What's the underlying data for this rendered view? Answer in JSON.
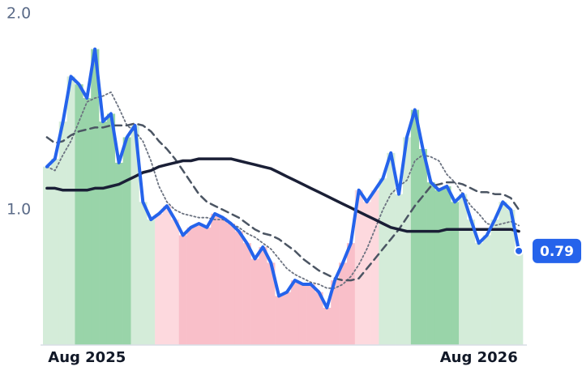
{
  "chart_data": {
    "type": "line",
    "categories": [
      null,
      null,
      null,
      null,
      null,
      "Aug 2025",
      null,
      null,
      null,
      null,
      null,
      null,
      null,
      null,
      null,
      null,
      null,
      null,
      null,
      null,
      null,
      null,
      null,
      null,
      null,
      null,
      null,
      null,
      null,
      null,
      null,
      null,
      null,
      null,
      null,
      null,
      null,
      null,
      null,
      null,
      null,
      null,
      null,
      null,
      null,
      null,
      null,
      null,
      null,
      null,
      null,
      null,
      null,
      null,
      "Aug 2026",
      null,
      null,
      null,
      null,
      null
    ],
    "series": [
      {
        "color": "#2563eb",
        "style": "solid",
        "width": 4,
        "values": [
          1.22,
          1.26,
          1.45,
          1.68,
          1.64,
          1.57,
          1.82,
          1.45,
          1.49,
          1.24,
          1.37,
          1.43,
          1.04,
          0.95,
          0.98,
          1.02,
          0.95,
          0.87,
          0.91,
          0.93,
          0.91,
          0.98,
          0.96,
          0.93,
          0.89,
          0.83,
          0.75,
          0.81,
          0.73,
          0.56,
          0.58,
          0.64,
          0.62,
          0.62,
          0.58,
          0.5,
          0.64,
          0.73,
          0.83,
          1.1,
          1.04,
          1.1,
          1.16,
          1.29,
          1.08,
          1.37,
          1.51,
          1.31,
          1.14,
          1.1,
          1.12,
          1.04,
          1.08,
          0.95,
          0.83,
          0.87,
          0.95,
          1.04,
          1.0,
          0.79
        ],
        "fill_colors": [
          "#d4ecd9",
          "#d4ecd9",
          "#d4ecd9",
          "#d4ecd9",
          "#99d4a9",
          "#99d4a9",
          "#99d4a9",
          "#99d4a9",
          "#99d4a9",
          "#99d4a9",
          "#99d4a9",
          "#d4ecd9",
          "#d4ecd9",
          "#d4ecd9",
          "#fdd9de",
          "#fdd9de",
          "#fdd9de",
          "#f9bfc9",
          "#f9bfc9",
          "#f9bfc9",
          "#f9bfc9",
          "#f9bfc9",
          "#f9bfc9",
          "#f9bfc9",
          "#f9bfc9",
          "#f9bfc9",
          "#f9bfc9",
          "#f9bfc9",
          "#f9bfc9",
          "#f9bfc9",
          "#f9bfc9",
          "#f9bfc9",
          "#f9bfc9",
          "#f9bfc9",
          "#f9bfc9",
          "#f9bfc9",
          "#f9bfc9",
          "#f9bfc9",
          "#f9bfc9",
          "#fdd9de",
          "#fdd9de",
          "#fdd9de",
          "#d4ecd9",
          "#d4ecd9",
          "#d4ecd9",
          "#d4ecd9",
          "#99d4a9",
          "#99d4a9",
          "#99d4a9",
          "#99d4a9",
          "#99d4a9",
          "#99d4a9",
          "#d4ecd9",
          "#d4ecd9",
          "#d4ecd9",
          "#d4ecd9",
          "#d4ecd9",
          "#d4ecd9",
          "#d4ecd9",
          "#d4ecd9"
        ],
        "end_label": true
      },
      {
        "color": "#1a1f36",
        "style": "solid",
        "width": 3.5,
        "values": [
          1.11,
          1.11,
          1.1,
          1.1,
          1.1,
          1.1,
          1.11,
          1.11,
          1.12,
          1.13,
          1.15,
          1.17,
          1.19,
          1.2,
          1.22,
          1.23,
          1.24,
          1.25,
          1.25,
          1.26,
          1.26,
          1.26,
          1.26,
          1.26,
          1.25,
          1.24,
          1.23,
          1.22,
          1.21,
          1.19,
          1.17,
          1.15,
          1.13,
          1.11,
          1.09,
          1.07,
          1.05,
          1.03,
          1.01,
          0.99,
          0.97,
          0.95,
          0.93,
          0.91,
          0.9,
          0.89,
          0.89,
          0.89,
          0.89,
          0.89,
          0.9,
          0.9,
          0.9,
          0.9,
          0.9,
          0.9,
          0.9,
          0.9,
          0.9,
          0.89
        ]
      },
      {
        "color": "#4b5563",
        "style": "dashed",
        "width": 2.5,
        "values": [
          1.37,
          1.34,
          1.35,
          1.38,
          1.4,
          1.41,
          1.42,
          1.42,
          1.43,
          1.43,
          1.43,
          1.44,
          1.43,
          1.4,
          1.35,
          1.31,
          1.26,
          1.2,
          1.14,
          1.08,
          1.04,
          1.02,
          1.0,
          0.98,
          0.96,
          0.93,
          0.9,
          0.88,
          0.87,
          0.85,
          0.82,
          0.79,
          0.75,
          0.72,
          0.69,
          0.67,
          0.65,
          0.64,
          0.64,
          0.65,
          0.7,
          0.75,
          0.8,
          0.85,
          0.9,
          0.96,
          1.02,
          1.07,
          1.12,
          1.13,
          1.14,
          1.14,
          1.13,
          1.11,
          1.09,
          1.09,
          1.08,
          1.08,
          1.06,
          1.0
        ]
      },
      {
        "color": "#6b7280",
        "style": "dotted",
        "width": 1.8,
        "values": [
          1.22,
          1.2,
          1.28,
          1.35,
          1.45,
          1.55,
          1.57,
          1.58,
          1.6,
          1.52,
          1.43,
          1.4,
          1.35,
          1.25,
          1.12,
          1.04,
          1.0,
          0.98,
          0.97,
          0.96,
          0.96,
          0.95,
          0.95,
          0.93,
          0.91,
          0.88,
          0.86,
          0.83,
          0.8,
          0.75,
          0.7,
          0.67,
          0.65,
          0.63,
          0.62,
          0.6,
          0.6,
          0.62,
          0.66,
          0.72,
          0.8,
          0.9,
          1.0,
          1.08,
          1.12,
          1.15,
          1.25,
          1.28,
          1.27,
          1.25,
          1.18,
          1.14,
          1.08,
          1.02,
          0.98,
          0.93,
          0.92,
          0.93,
          0.94,
          0.92
        ]
      }
    ],
    "ylim": [
      0.31,
      2.0
    ],
    "yticks": [
      {
        "value": 1,
        "label": "1.0"
      },
      {
        "value": 2,
        "label": "2.0"
      }
    ],
    "grid": false
  }
}
